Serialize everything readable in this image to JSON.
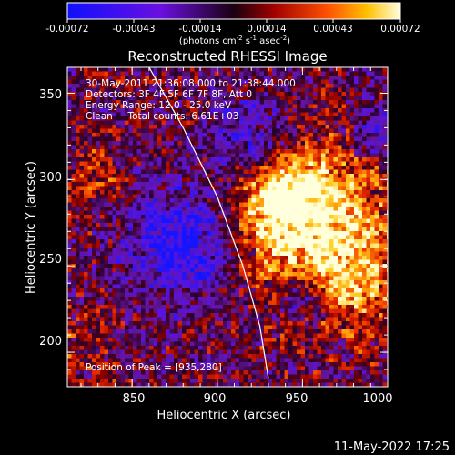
{
  "colorbar": {
    "ticks": [
      "-0.00072",
      "-0.00043",
      "-0.00014",
      "0.00014",
      "0.00043",
      "0.00072"
    ],
    "units_prefix": "(photons cm",
    "units_sup1": "-2",
    "units_mid1": " s",
    "units_sup2": "-1",
    "units_mid2": " asec",
    "units_sup3": "-2",
    "units_suffix": ")"
  },
  "title": "Reconstructed RHESSI Image",
  "annotations": {
    "time": "30-May-2011 21:36:08.000 to 21:38:44.000",
    "detectors": "Detectors: 3F 4F 5F 6F 7F 8F, Att 0",
    "energy": "Energy Range: 12.0 - 25.0 keV",
    "clean": "Clean     Total counts: 6.61E+03",
    "peak": "Position of Peak = [935,280]"
  },
  "axes": {
    "xlabel": "Heliocentric X (arcsec)",
    "ylabel": "Heliocentric Y (arcsec)",
    "xticks": [
      "850",
      "900",
      "950",
      "1000"
    ],
    "yticks": [
      "200",
      "250",
      "300",
      "350"
    ],
    "xrange": [
      812,
      1000
    ],
    "yrange": [
      180,
      365
    ],
    "xtick_values": [
      850,
      900,
      950,
      1000
    ],
    "ytick_values": [
      200,
      250,
      300,
      350
    ]
  },
  "limb": {
    "points": [
      [
        860,
        365
      ],
      [
        880,
        330
      ],
      [
        900,
        290
      ],
      [
        915,
        250
      ],
      [
        925,
        215
      ],
      [
        930,
        185
      ]
    ]
  },
  "peak_xy": [
    935,
    280
  ],
  "footer": {
    "timestamp": "11-May-2022 17:25"
  }
}
